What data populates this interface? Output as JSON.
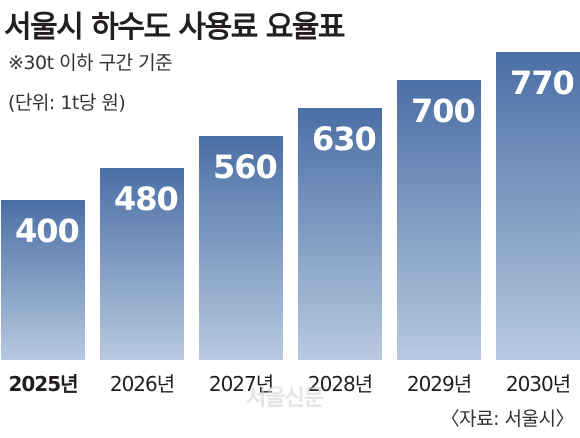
{
  "header": {
    "title": "서울시 하수도 사용료 요율표",
    "subtitle": "※30t 이하 구간 기준",
    "unit": "(단위: 1t당 원)"
  },
  "source": "〈자료: 서울시〉",
  "watermark": "서울신문",
  "colors": {
    "bar_top": "#4a6fa5",
    "bar_bottom": "#b8c9e0",
    "value_label": "#ffffff"
  },
  "chart_data": {
    "type": "bar",
    "categories": [
      "2025년",
      "2026년",
      "2027년",
      "2028년",
      "2029년",
      "2030년"
    ],
    "values": [
      400,
      480,
      560,
      630,
      700,
      770
    ],
    "title": "서울시 하수도 사용료 요율표",
    "xlabel": "",
    "ylabel": "",
    "highlight_category": "2025년",
    "data_labels": true,
    "grid": false,
    "legend": "none"
  }
}
